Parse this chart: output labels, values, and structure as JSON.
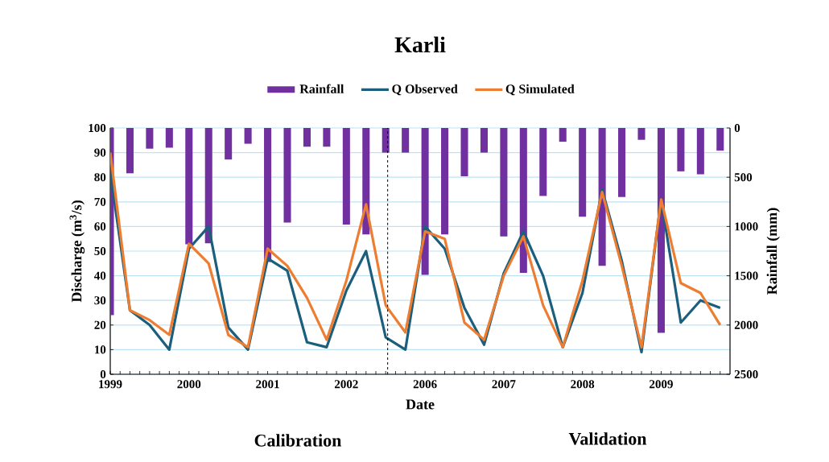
{
  "chart_data": {
    "type": "line",
    "title": "Karli",
    "xlabel": "Date",
    "ylabel": "Discharge (m$^{3}$/s)",
    "y2label": "Rainfall (mm)",
    "categories": [
      "1999",
      null,
      null,
      null,
      "2000",
      null,
      null,
      null,
      "2001",
      null,
      null,
      null,
      "2002",
      null,
      null,
      null,
      "2006",
      null,
      null,
      null,
      "2007",
      null,
      null,
      null,
      "2008",
      null,
      null,
      null,
      "2009",
      null,
      null,
      null
    ],
    "series": [
      {
        "name": "Rainfall",
        "type": "bar",
        "axis": "y2",
        "color": "#7030a0",
        "values": [
          1900,
          460,
          210,
          200,
          1180,
          1170,
          320,
          160,
          1360,
          960,
          190,
          190,
          980,
          1080,
          250,
          250,
          1490,
          1080,
          490,
          250,
          1100,
          1470,
          690,
          140,
          900,
          1400,
          700,
          120,
          2080,
          440,
          470,
          230
        ]
      },
      {
        "name": "Q Observed",
        "color": "#1b5f7c",
        "values": [
          82,
          26,
          20,
          10,
          51,
          60,
          19,
          10,
          47,
          42,
          13,
          11,
          34,
          50,
          15,
          10,
          60,
          51,
          27,
          12,
          41,
          58,
          40,
          11,
          33,
          75,
          46,
          9,
          71,
          21,
          30,
          27
        ]
      },
      {
        "name": "Q Simulated",
        "color": "#ed7d31",
        "values": [
          90,
          26,
          22,
          16,
          53,
          45,
          16,
          11,
          51,
          44,
          31,
          14,
          38,
          69,
          28,
          17,
          58,
          55,
          21,
          14,
          40,
          56,
          28,
          11,
          38,
          74,
          44,
          11,
          71,
          37,
          33,
          20
        ]
      }
    ],
    "ylim": [
      0,
      100
    ],
    "yticks": [
      0,
      10,
      20,
      30,
      40,
      50,
      60,
      70,
      80,
      90,
      100
    ],
    "y2lim": [
      2500,
      0
    ],
    "y2ticks": [
      0,
      500,
      1000,
      1500,
      2000,
      2500
    ],
    "annotations": [
      "Calibration",
      "Validation"
    ],
    "grid": "y",
    "legend": "top",
    "marker": "none",
    "line_style": "solid"
  }
}
